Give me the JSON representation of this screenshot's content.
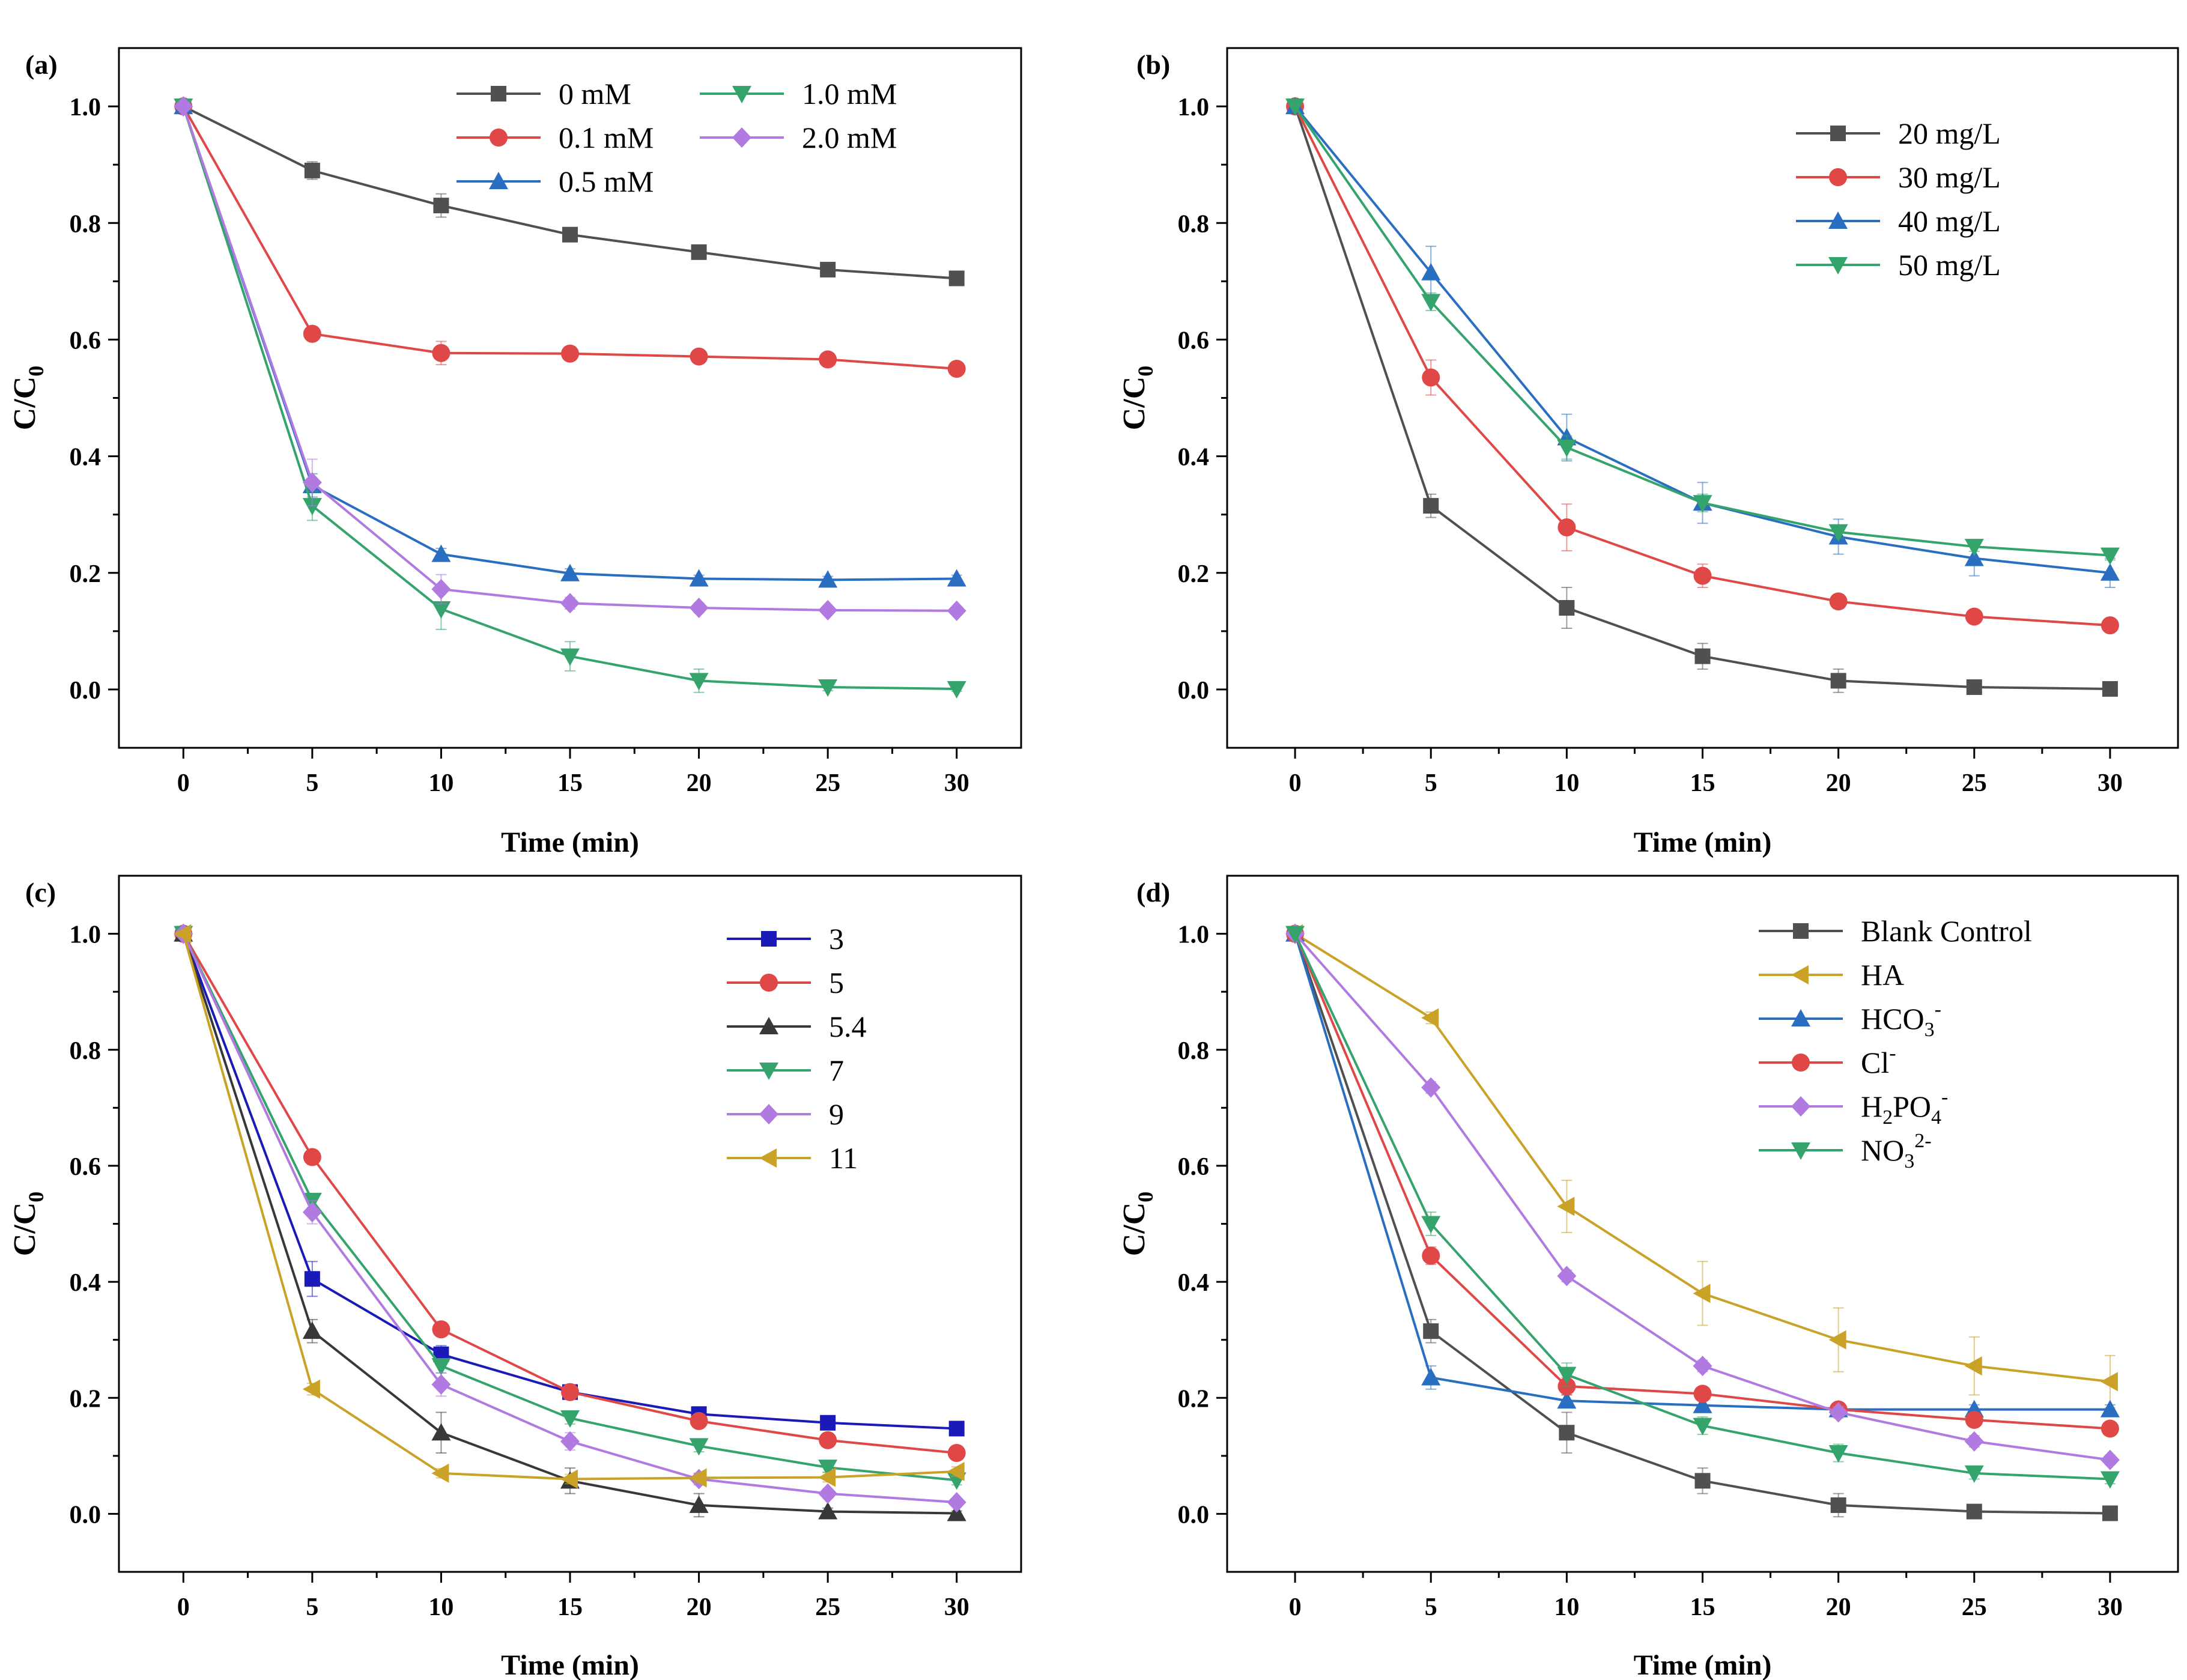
{
  "figure": {
    "x_title": "Time (min)",
    "y_title_main": "C/C",
    "y_title_sub": "0"
  },
  "chart_data": [
    {
      "type": "line",
      "panel": "(a)",
      "xlabel": "Time (min)",
      "ylabel": "C/C0",
      "xlim": [
        -2.5,
        32.5
      ],
      "ylim": [
        -0.1,
        1.1
      ],
      "xticks": [
        0,
        5,
        10,
        15,
        20,
        25,
        30
      ],
      "yticks": [
        0.0,
        0.2,
        0.4,
        0.6,
        0.8,
        1.0
      ],
      "legend_position": "top-right",
      "legend_columns": 2,
      "x": [
        0,
        5,
        10,
        15,
        20,
        25,
        30
      ],
      "series": [
        {
          "name": "0 mM",
          "color": "#505050",
          "marker": "square",
          "values": [
            1.0,
            0.89,
            0.83,
            0.78,
            0.75,
            0.72,
            0.705
          ],
          "errors": [
            0,
            0.015,
            0.02,
            0.01,
            0.008,
            0.008,
            0.008
          ]
        },
        {
          "name": "0.1 mM",
          "color": "#e04848",
          "marker": "circle",
          "values": [
            1.0,
            0.61,
            0.577,
            0.576,
            0.571,
            0.566,
            0.55
          ],
          "errors": [
            0,
            0.012,
            0.02,
            0.012,
            0.008,
            0.008,
            0.008
          ]
        },
        {
          "name": "0.5 mM",
          "color": "#2a6ec2",
          "marker": "triangle-up",
          "values": [
            1.0,
            0.35,
            0.232,
            0.199,
            0.19,
            0.188,
            0.19
          ],
          "errors": [
            0,
            0.02,
            0.01,
            0.008,
            0.006,
            0.006,
            0.006
          ]
        },
        {
          "name": "1.0 mM",
          "color": "#34a36c",
          "marker": "triangle-down",
          "values": [
            1.0,
            0.315,
            0.138,
            0.057,
            0.015,
            0.004,
            0.001
          ],
          "errors": [
            0,
            0.025,
            0.035,
            0.025,
            0.02,
            0.006,
            0.004
          ]
        },
        {
          "name": "2.0 mM",
          "color": "#b07ae0",
          "marker": "diamond",
          "values": [
            1.0,
            0.355,
            0.172,
            0.148,
            0.14,
            0.136,
            0.135
          ],
          "errors": [
            0,
            0.04,
            0.025,
            0.01,
            0.008,
            0.006,
            0.006
          ]
        }
      ]
    },
    {
      "type": "line",
      "panel": "(b)",
      "xlabel": "Time (min)",
      "ylabel": "C/C0",
      "xlim": [
        -2.5,
        32.5
      ],
      "ylim": [
        -0.1,
        1.1
      ],
      "xticks": [
        0,
        5,
        10,
        15,
        20,
        25,
        30
      ],
      "yticks": [
        0.0,
        0.2,
        0.4,
        0.6,
        0.8,
        1.0
      ],
      "legend_position": "top-right",
      "legend_columns": 1,
      "x": [
        0,
        5,
        10,
        15,
        20,
        25,
        30
      ],
      "series": [
        {
          "name": "20 mg/L",
          "color": "#505050",
          "marker": "square",
          "values": [
            1.0,
            0.315,
            0.14,
            0.057,
            0.015,
            0.004,
            0.001
          ],
          "errors": [
            0,
            0.02,
            0.035,
            0.022,
            0.02,
            0.006,
            0.004
          ]
        },
        {
          "name": "30 mg/L",
          "color": "#e04848",
          "marker": "circle",
          "values": [
            1.0,
            0.535,
            0.278,
            0.195,
            0.151,
            0.125,
            0.11
          ],
          "errors": [
            0,
            0.03,
            0.04,
            0.02,
            0.012,
            0.008,
            0.008
          ]
        },
        {
          "name": "40 mg/L",
          "color": "#2a6ec2",
          "marker": "triangle-up",
          "values": [
            1.0,
            0.715,
            0.432,
            0.32,
            0.262,
            0.225,
            0.2
          ],
          "errors": [
            0,
            0.045,
            0.04,
            0.035,
            0.03,
            0.03,
            0.025
          ]
        },
        {
          "name": "50 mg/L",
          "color": "#34a36c",
          "marker": "triangle-down",
          "values": [
            1.0,
            0.665,
            0.415,
            0.32,
            0.27,
            0.245,
            0.23
          ],
          "errors": [
            0,
            0.015,
            0.02,
            0.015,
            0.01,
            0.008,
            0.008
          ]
        }
      ]
    },
    {
      "type": "line",
      "panel": "(c)",
      "xlabel": "Time (min)",
      "ylabel": "C/C0",
      "xlim": [
        -2.5,
        32.5
      ],
      "ylim": [
        -0.1,
        1.1
      ],
      "xticks": [
        0,
        5,
        10,
        15,
        20,
        25,
        30
      ],
      "yticks": [
        0.0,
        0.2,
        0.4,
        0.6,
        0.8,
        1.0
      ],
      "legend_position": "top-right",
      "legend_columns": 1,
      "x": [
        0,
        5,
        10,
        15,
        20,
        25,
        30
      ],
      "series": [
        {
          "name": "3",
          "color": "#1a1ab8",
          "marker": "square",
          "values": [
            1.0,
            0.405,
            0.275,
            0.21,
            0.172,
            0.157,
            0.147
          ],
          "errors": [
            0,
            0.03,
            0.015,
            0.01,
            0.008,
            0.008,
            0.006
          ]
        },
        {
          "name": "5",
          "color": "#e04848",
          "marker": "circle",
          "values": [
            1.0,
            0.615,
            0.318,
            0.21,
            0.16,
            0.127,
            0.105
          ],
          "errors": [
            0,
            0.012,
            0.012,
            0.01,
            0.01,
            0.008,
            0.008
          ]
        },
        {
          "name": "5.4",
          "color": "#383838",
          "marker": "triangle-up",
          "values": [
            1.0,
            0.315,
            0.14,
            0.057,
            0.015,
            0.004,
            0.001
          ],
          "errors": [
            0,
            0.02,
            0.035,
            0.022,
            0.02,
            0.006,
            0.004
          ]
        },
        {
          "name": "7",
          "color": "#34a36c",
          "marker": "triangle-down",
          "values": [
            1.0,
            0.54,
            0.255,
            0.165,
            0.117,
            0.08,
            0.058
          ],
          "errors": [
            0,
            0.012,
            0.012,
            0.01,
            0.01,
            0.008,
            0.008
          ]
        },
        {
          "name": "9",
          "color": "#b07ae0",
          "marker": "diamond",
          "values": [
            1.0,
            0.52,
            0.223,
            0.125,
            0.06,
            0.035,
            0.02
          ],
          "errors": [
            0,
            0.02,
            0.02,
            0.015,
            0.01,
            0.008,
            0.006
          ]
        },
        {
          "name": "11",
          "color": "#c9a227",
          "marker": "triangle-left",
          "values": [
            1.0,
            0.215,
            0.07,
            0.06,
            0.062,
            0.063,
            0.073
          ],
          "errors": [
            0,
            0.01,
            0.008,
            0.008,
            0.008,
            0.008,
            0.008
          ]
        }
      ]
    },
    {
      "type": "line",
      "panel": "(d)",
      "xlabel": "Time (min)",
      "ylabel": "C/C0",
      "xlim": [
        -2.5,
        32.5
      ],
      "ylim": [
        -0.1,
        1.1
      ],
      "xticks": [
        0,
        5,
        10,
        15,
        20,
        25,
        30
      ],
      "yticks": [
        0.0,
        0.2,
        0.4,
        0.6,
        0.8,
        1.0
      ],
      "legend_position": "top-right",
      "legend_columns": 1,
      "x": [
        0,
        5,
        10,
        15,
        20,
        25,
        30
      ],
      "series": [
        {
          "name": "Blank Control",
          "label_main": "Blank Control",
          "label_sub": "",
          "label_main2": "",
          "label_sup": "",
          "color": "#505050",
          "marker": "square",
          "values": [
            1.0,
            0.315,
            0.14,
            0.057,
            0.015,
            0.004,
            0.001
          ],
          "errors": [
            0,
            0.02,
            0.035,
            0.022,
            0.02,
            0.006,
            0.004
          ]
        },
        {
          "name": "HA",
          "label_main": "HA",
          "label_sub": "",
          "label_main2": "",
          "label_sup": "",
          "color": "#c9a227",
          "marker": "triangle-left",
          "values": [
            1.0,
            0.855,
            0.53,
            0.38,
            0.3,
            0.255,
            0.228
          ],
          "errors": [
            0,
            0.01,
            0.045,
            0.055,
            0.055,
            0.05,
            0.045
          ]
        },
        {
          "name": "HCO3-",
          "label_main": "HCO",
          "label_sub": "3",
          "label_main2": "",
          "label_sup": "-",
          "color": "#2a6ec2",
          "marker": "triangle-up",
          "values": [
            1.0,
            0.235,
            0.195,
            0.187,
            0.18,
            0.18,
            0.18
          ],
          "errors": [
            0,
            0.02,
            0.01,
            0.008,
            0.008,
            0.008,
            0.008
          ]
        },
        {
          "name": "Cl-",
          "label_main": "Cl",
          "label_sub": "",
          "label_main2": "",
          "label_sup": "-",
          "color": "#e04848",
          "marker": "circle",
          "values": [
            1.0,
            0.445,
            0.22,
            0.207,
            0.18,
            0.162,
            0.147
          ],
          "errors": [
            0,
            0.015,
            0.015,
            0.01,
            0.01,
            0.01,
            0.01
          ]
        },
        {
          "name": "H2PO4-",
          "label_main": "H",
          "label_sub": "2",
          "label_main2": "PO",
          "label_sub2": "4",
          "label_sup": "-",
          "color": "#b07ae0",
          "marker": "diamond",
          "values": [
            1.0,
            0.735,
            0.41,
            0.255,
            0.175,
            0.125,
            0.093
          ],
          "errors": [
            0,
            0.01,
            0.01,
            0.01,
            0.01,
            0.01,
            0.008
          ]
        },
        {
          "name": "NO32-",
          "label_main": "NO",
          "label_sub": "3",
          "label_main2": "",
          "label_sup": "2-",
          "color": "#34a36c",
          "marker": "triangle-down",
          "values": [
            1.0,
            0.5,
            0.24,
            0.152,
            0.105,
            0.07,
            0.06
          ],
          "errors": [
            0,
            0.02,
            0.02,
            0.015,
            0.015,
            0.01,
            0.008
          ]
        }
      ]
    }
  ]
}
